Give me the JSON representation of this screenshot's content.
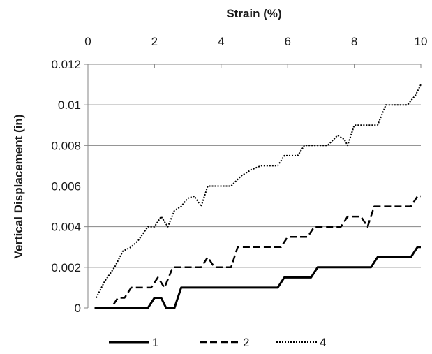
{
  "chart_data": {
    "type": "line",
    "title": "",
    "xlabel": "Strain (%)",
    "ylabel": "Vertical Displacement (in)",
    "xlim": [
      0,
      10
    ],
    "ylim": [
      0,
      0.012
    ],
    "x_axis_position": "top",
    "x_ticks": [
      "0",
      "2",
      "4",
      "6",
      "8",
      "10"
    ],
    "y_ticks": [
      "0",
      "0.002",
      "0.004",
      "0.006",
      "0.008",
      "0.01",
      "0.012"
    ],
    "grid": "horizontal",
    "legend_position": "bottom",
    "series": [
      {
        "name": "1",
        "style": "solid",
        "color": "#000000",
        "points": [
          [
            0.2,
            0
          ],
          [
            1.8,
            0
          ],
          [
            2.0,
            0.0005
          ],
          [
            2.2,
            0.0005
          ],
          [
            2.35,
            0
          ],
          [
            2.6,
            0
          ],
          [
            2.8,
            0.001
          ],
          [
            5.7,
            0.001
          ],
          [
            5.9,
            0.0015
          ],
          [
            6.7,
            0.0015
          ],
          [
            6.9,
            0.002
          ],
          [
            8.5,
            0.002
          ],
          [
            8.7,
            0.0025
          ],
          [
            9.7,
            0.0025
          ],
          [
            9.9,
            0.003
          ],
          [
            10,
            0.003
          ]
        ]
      },
      {
        "name": "2",
        "style": "dashed",
        "color": "#000000",
        "points": [
          [
            0.2,
            0
          ],
          [
            0.7,
            0
          ],
          [
            0.9,
            0.0005
          ],
          [
            1.1,
            0.0005
          ],
          [
            1.3,
            0.001
          ],
          [
            1.9,
            0.001
          ],
          [
            2.1,
            0.0015
          ],
          [
            2.3,
            0.001
          ],
          [
            2.55,
            0.002
          ],
          [
            3.4,
            0.002
          ],
          [
            3.6,
            0.0025
          ],
          [
            3.8,
            0.002
          ],
          [
            4.3,
            0.002
          ],
          [
            4.5,
            0.003
          ],
          [
            5.8,
            0.003
          ],
          [
            6.0,
            0.0035
          ],
          [
            6.6,
            0.0035
          ],
          [
            6.8,
            0.004
          ],
          [
            7.6,
            0.004
          ],
          [
            7.8,
            0.0045
          ],
          [
            8.2,
            0.0045
          ],
          [
            8.4,
            0.004
          ],
          [
            8.6,
            0.005
          ],
          [
            9.7,
            0.005
          ],
          [
            9.9,
            0.0055
          ],
          [
            10,
            0.0055
          ]
        ]
      },
      {
        "name": "4",
        "style": "dotted",
        "color": "#000000",
        "points": [
          [
            0.25,
            0.0005
          ],
          [
            0.5,
            0.0013
          ],
          [
            0.8,
            0.002
          ],
          [
            1.05,
            0.0028
          ],
          [
            1.3,
            0.003
          ],
          [
            1.5,
            0.0033
          ],
          [
            1.8,
            0.004
          ],
          [
            2.0,
            0.004
          ],
          [
            2.2,
            0.0045
          ],
          [
            2.4,
            0.004
          ],
          [
            2.6,
            0.0048
          ],
          [
            2.8,
            0.005
          ],
          [
            3.0,
            0.0054
          ],
          [
            3.2,
            0.0055
          ],
          [
            3.4,
            0.005
          ],
          [
            3.6,
            0.006
          ],
          [
            4.3,
            0.006
          ],
          [
            4.6,
            0.0065
          ],
          [
            4.9,
            0.0068
          ],
          [
            5.2,
            0.007
          ],
          [
            5.7,
            0.007
          ],
          [
            5.9,
            0.0075
          ],
          [
            6.3,
            0.0075
          ],
          [
            6.5,
            0.008
          ],
          [
            7.2,
            0.008
          ],
          [
            7.5,
            0.0085
          ],
          [
            7.7,
            0.0083
          ],
          [
            7.8,
            0.008
          ],
          [
            8.0,
            0.009
          ],
          [
            8.7,
            0.009
          ],
          [
            8.95,
            0.01
          ],
          [
            9.6,
            0.01
          ],
          [
            9.85,
            0.0105
          ],
          [
            10,
            0.011
          ]
        ]
      }
    ]
  }
}
